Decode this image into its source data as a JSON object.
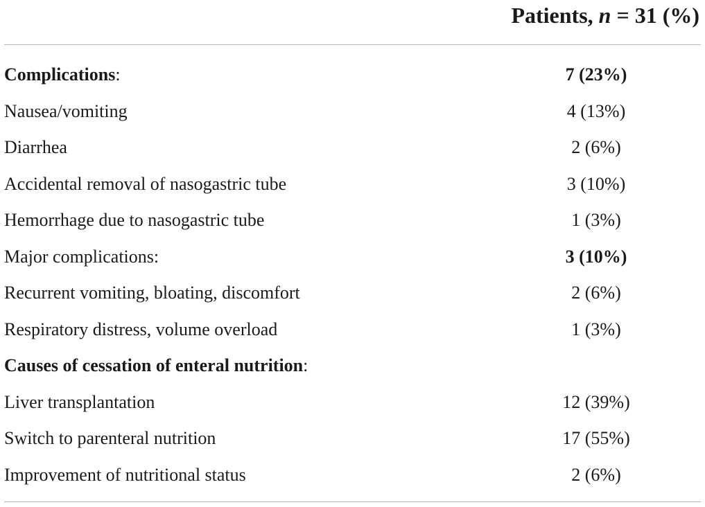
{
  "header": {
    "title_prefix": "Patients, ",
    "title_n": "n",
    "title_suffix": " = 31 (%)"
  },
  "rows": [
    {
      "label": "Complications",
      "label_suffix": ":",
      "value": "7 (23%)",
      "label_bold": true,
      "value_bold": true
    },
    {
      "label": "Nausea/vomiting",
      "label_suffix": "",
      "value": "4 (13%)",
      "label_bold": false,
      "value_bold": false
    },
    {
      "label": "Diarrhea",
      "label_suffix": "",
      "value": "2 (6%)",
      "label_bold": false,
      "value_bold": false
    },
    {
      "label": "Accidental removal of nasogastric tube",
      "label_suffix": "",
      "value": "3 (10%)",
      "label_bold": false,
      "value_bold": false
    },
    {
      "label": "Hemorrhage due to nasogastric tube",
      "label_suffix": "",
      "value": "1 (3%)",
      "label_bold": false,
      "value_bold": false
    },
    {
      "label": "Major complications:",
      "label_suffix": "",
      "value": "3 (10%)",
      "label_bold": false,
      "value_bold": true
    },
    {
      "label": "Recurrent vomiting, bloating, discomfort",
      "label_suffix": "",
      "value": "2 (6%)",
      "label_bold": false,
      "value_bold": false
    },
    {
      "label": "Respiratory distress, volume overload",
      "label_suffix": "",
      "value": "1 (3%)",
      "label_bold": false,
      "value_bold": false
    },
    {
      "label": "Causes of cessation of enteral nutrition",
      "label_suffix": ":",
      "value": "",
      "label_bold": true,
      "value_bold": false
    },
    {
      "label": "Liver transplantation",
      "label_suffix": "",
      "value": "12 (39%)",
      "label_bold": false,
      "value_bold": false
    },
    {
      "label": "Switch to parenteral nutrition",
      "label_suffix": "",
      "value": "17 (55%)",
      "label_bold": false,
      "value_bold": false
    },
    {
      "label": "Improvement of nutritional status",
      "label_suffix": "",
      "value": "2 (6%)",
      "label_bold": false,
      "value_bold": false
    }
  ]
}
